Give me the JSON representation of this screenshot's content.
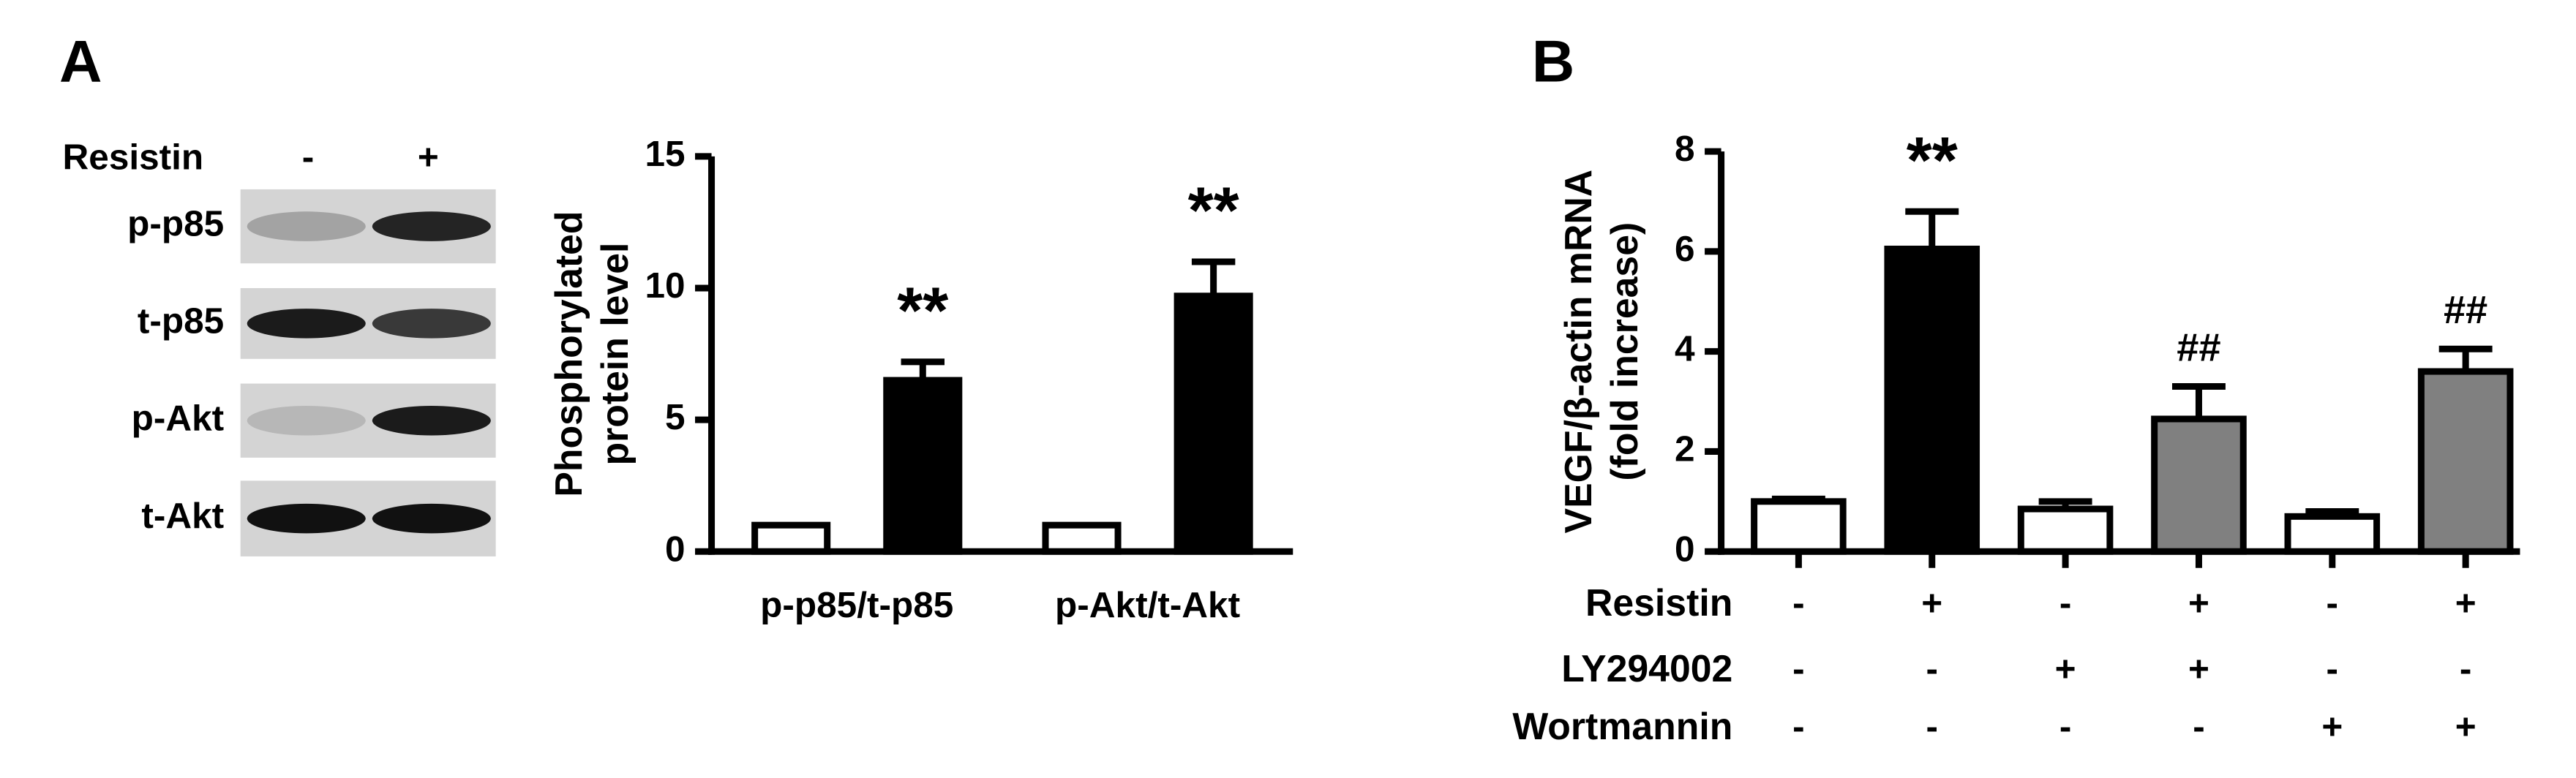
{
  "panels": [
    "A",
    "B"
  ],
  "blot": {
    "header": "Resistin",
    "lanes": [
      "-",
      "+"
    ],
    "rows": [
      "p-p85",
      "t-p85",
      "p-Akt",
      "t-Akt"
    ]
  },
  "chart_data": [
    {
      "type": "bar",
      "ylabel": [
        "Phosphorylated",
        "protein level"
      ],
      "categories": [
        "p-p85/t-p85",
        "p-Akt/t-Akt"
      ],
      "series": [
        {
          "color": "#ffffff",
          "values": [
            1,
            1
          ],
          "errors": [
            0,
            0
          ]
        },
        {
          "color": "#000000",
          "values": [
            6.5,
            9.7
          ],
          "errors": [
            0.7,
            1.3
          ],
          "significance": [
            "**",
            "**"
          ]
        }
      ],
      "ylim": [
        0,
        15
      ],
      "yticks": [
        0,
        5,
        10,
        15
      ]
    },
    {
      "type": "bar",
      "ylabel": [
        "VEGF/β-actin mRNA",
        "(fold increase)"
      ],
      "values": [
        1,
        6.05,
        0.85,
        2.65,
        0.7,
        3.6
      ],
      "errors": [
        0.05,
        0.75,
        0.15,
        0.65,
        0.1,
        0.45
      ],
      "colors": [
        "#ffffff",
        "#000000",
        "#ffffff",
        "#808080",
        "#ffffff",
        "#808080"
      ],
      "significance": [
        null,
        "**",
        null,
        "##",
        null,
        "##"
      ],
      "conditions": [
        {
          "label": "Resistin",
          "values": [
            "-",
            "+",
            "-",
            "+",
            "-",
            "+"
          ]
        },
        {
          "label": "LY294002",
          "values": [
            "-",
            "-",
            "+",
            "+",
            "-",
            "-"
          ]
        },
        {
          "label": "Wortmannin",
          "values": [
            "-",
            "-",
            "-",
            "-",
            "+",
            "+"
          ]
        }
      ],
      "ylim": [
        0,
        8
      ],
      "yticks": [
        0,
        2,
        4,
        6,
        8
      ]
    }
  ]
}
